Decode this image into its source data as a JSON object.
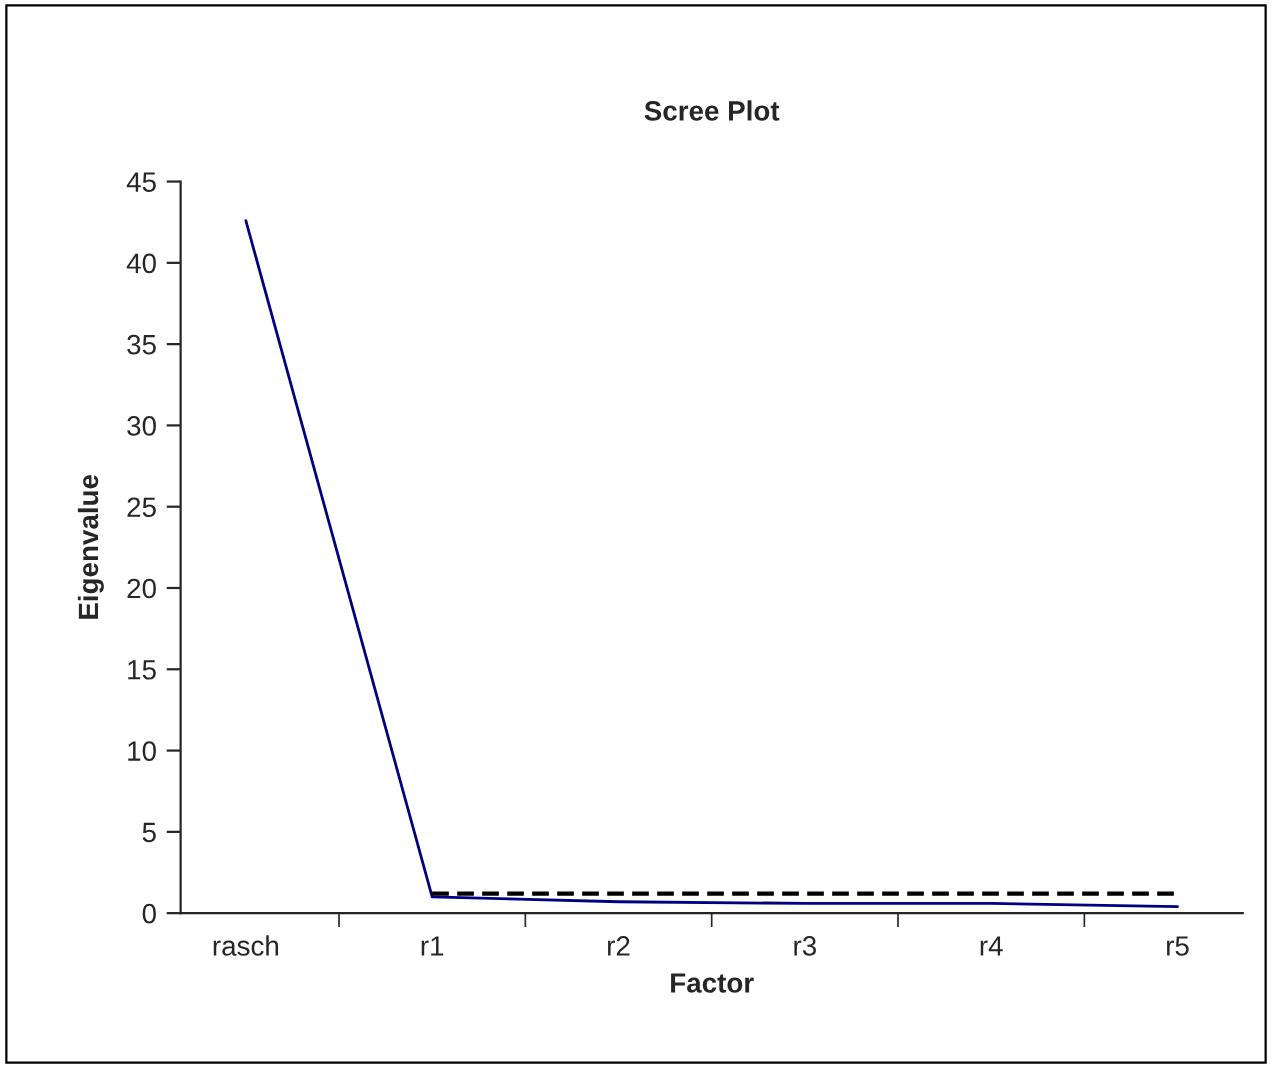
{
  "chart_data": {
    "type": "line",
    "title": "Scree Plot",
    "xlabel": "Factor",
    "ylabel": "Eigenvalue",
    "categories": [
      "rasch",
      "r1",
      "r2",
      "r3",
      "r4",
      "r5"
    ],
    "series": [
      {
        "color": "#000080",
        "values": [
          42.6,
          1.0,
          0.7,
          0.6,
          0.6,
          0.4
        ],
        "line_style": "solid"
      },
      {
        "color": "#000000",
        "values": [
          null,
          1.2,
          1.2,
          1.2,
          1.2,
          1.2
        ],
        "line_style": "dashed"
      }
    ],
    "ylim": [
      0,
      45
    ],
    "yticks": [
      0,
      5,
      10,
      15,
      20,
      25,
      30,
      35,
      40,
      45
    ],
    "grid": false
  }
}
